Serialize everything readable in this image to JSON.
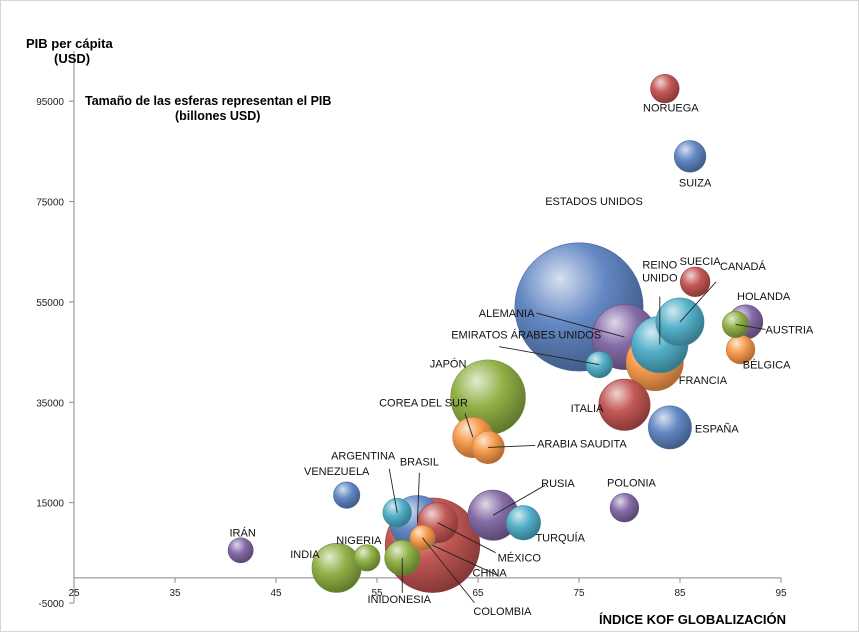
{
  "chart_data": {
    "type": "scatter",
    "subtitle_lines": [
      "Tamaño de las esferas representan el PIB",
      "(billones USD)"
    ],
    "xlabel": "ÍNDICE KOF GLOBALIZACIÓN",
    "ylabel_lines": [
      "PIB per cápita",
      "(USD)"
    ],
    "xlim": [
      25,
      95
    ],
    "ylim": [
      -5000,
      105000
    ],
    "x_ticks": [
      25,
      35,
      45,
      55,
      65,
      75,
      85,
      95
    ],
    "y_ticks": [
      -5000,
      15000,
      35000,
      55000,
      75000,
      95000
    ],
    "grid": false,
    "legend": "none",
    "size_encoding": "PIB",
    "points": [
      {
        "label": "ESTADOS UNIDOS",
        "x": 75,
        "y": 54000,
        "size": 15.7,
        "color": "#5b82c1"
      },
      {
        "label": "CHINA",
        "x": 60.5,
        "y": 6500,
        "size": 8.2,
        "color": "#c0504d"
      },
      {
        "label": "JAPÓN",
        "x": 66,
        "y": 36000,
        "size": 4.9,
        "color": "#8bad3d"
      },
      {
        "label": "ALEMANIA",
        "x": 79.5,
        "y": 48000,
        "size": 3.6,
        "color": "#8064a2"
      },
      {
        "label": "FRANCIA",
        "x": 82.5,
        "y": 43000,
        "size": 2.7,
        "color": "#f79646"
      },
      {
        "label": "REINO UNIDO",
        "x": 83,
        "y": 46500,
        "size": 2.6,
        "color": "#4bacc6"
      },
      {
        "label": "BRASIL",
        "x": 59,
        "y": 11000,
        "size": 2.4,
        "color": "#5b82c1"
      },
      {
        "label": "RUSIA",
        "x": 66.5,
        "y": 12500,
        "size": 2.0,
        "color": "#8064a2"
      },
      {
        "label": "ITALIA",
        "x": 79.5,
        "y": 34500,
        "size": 2.1,
        "color": "#c0504d"
      },
      {
        "label": "INDIA",
        "x": 51,
        "y": 2000,
        "size": 1.9,
        "color": "#8bad3d"
      },
      {
        "label": "CANADÁ",
        "x": 85,
        "y": 51000,
        "size": 1.8,
        "color": "#4bacc6"
      },
      {
        "label": "ESPAÑA",
        "x": 84,
        "y": 30000,
        "size": 1.4,
        "color": "#5b82c1"
      },
      {
        "label": "MÉXICO",
        "x": 61,
        "y": 11000,
        "size": 1.2,
        "color": "#c0504d"
      },
      {
        "label": "COREA DEL SUR",
        "x": 64.5,
        "y": 28000,
        "size": 1.2,
        "color": "#f79646"
      },
      {
        "label": "INIDONESIA",
        "x": 57.5,
        "y": 4000,
        "size": 0.85,
        "color": "#8bad3d"
      },
      {
        "label": "TURQUÍA",
        "x": 69.5,
        "y": 11000,
        "size": 0.8,
        "color": "#4bacc6"
      },
      {
        "label": "HOLANDA",
        "x": 91.5,
        "y": 51000,
        "size": 0.8,
        "color": "#8064a2"
      },
      {
        "label": "ARABIA SAUDITA",
        "x": 66,
        "y": 26000,
        "size": 0.7,
        "color": "#f79646"
      },
      {
        "label": "SUIZA",
        "x": 86,
        "y": 84000,
        "size": 0.65,
        "color": "#5b82c1"
      },
      {
        "label": "SUECIA",
        "x": 86.5,
        "y": 59000,
        "size": 0.55,
        "color": "#c0504d"
      },
      {
        "label": "POLONIA",
        "x": 79.5,
        "y": 14000,
        "size": 0.5,
        "color": "#8064a2"
      },
      {
        "label": "BÉLGICA",
        "x": 91,
        "y": 45500,
        "size": 0.5,
        "color": "#f79646"
      },
      {
        "label": "NORUEGA",
        "x": 83.5,
        "y": 97500,
        "size": 0.5,
        "color": "#c0504d"
      },
      {
        "label": "ARGENTINA",
        "x": 57,
        "y": 13000,
        "size": 0.5,
        "color": "#4bacc6"
      },
      {
        "label": "VENEZUELA",
        "x": 52,
        "y": 16500,
        "size": 0.4,
        "color": "#5b82c1"
      },
      {
        "label": "AUSTRIA",
        "x": 90.5,
        "y": 50500,
        "size": 0.4,
        "color": "#8bad3d"
      },
      {
        "label": "EMIRATOS ÁRABES UNIDOS",
        "x": 77,
        "y": 42500,
        "size": 0.4,
        "color": "#4bacc6"
      },
      {
        "label": "NIGERIA",
        "x": 54,
        "y": 4000,
        "size": 0.4,
        "color": "#8bad3d"
      },
      {
        "label": "IRÁN",
        "x": 41.5,
        "y": 5500,
        "size": 0.35,
        "color": "#8064a2"
      },
      {
        "label": "COLOMBIA",
        "x": 59.5,
        "y": 8000,
        "size": 0.35,
        "color": "#f79646"
      }
    ]
  }
}
